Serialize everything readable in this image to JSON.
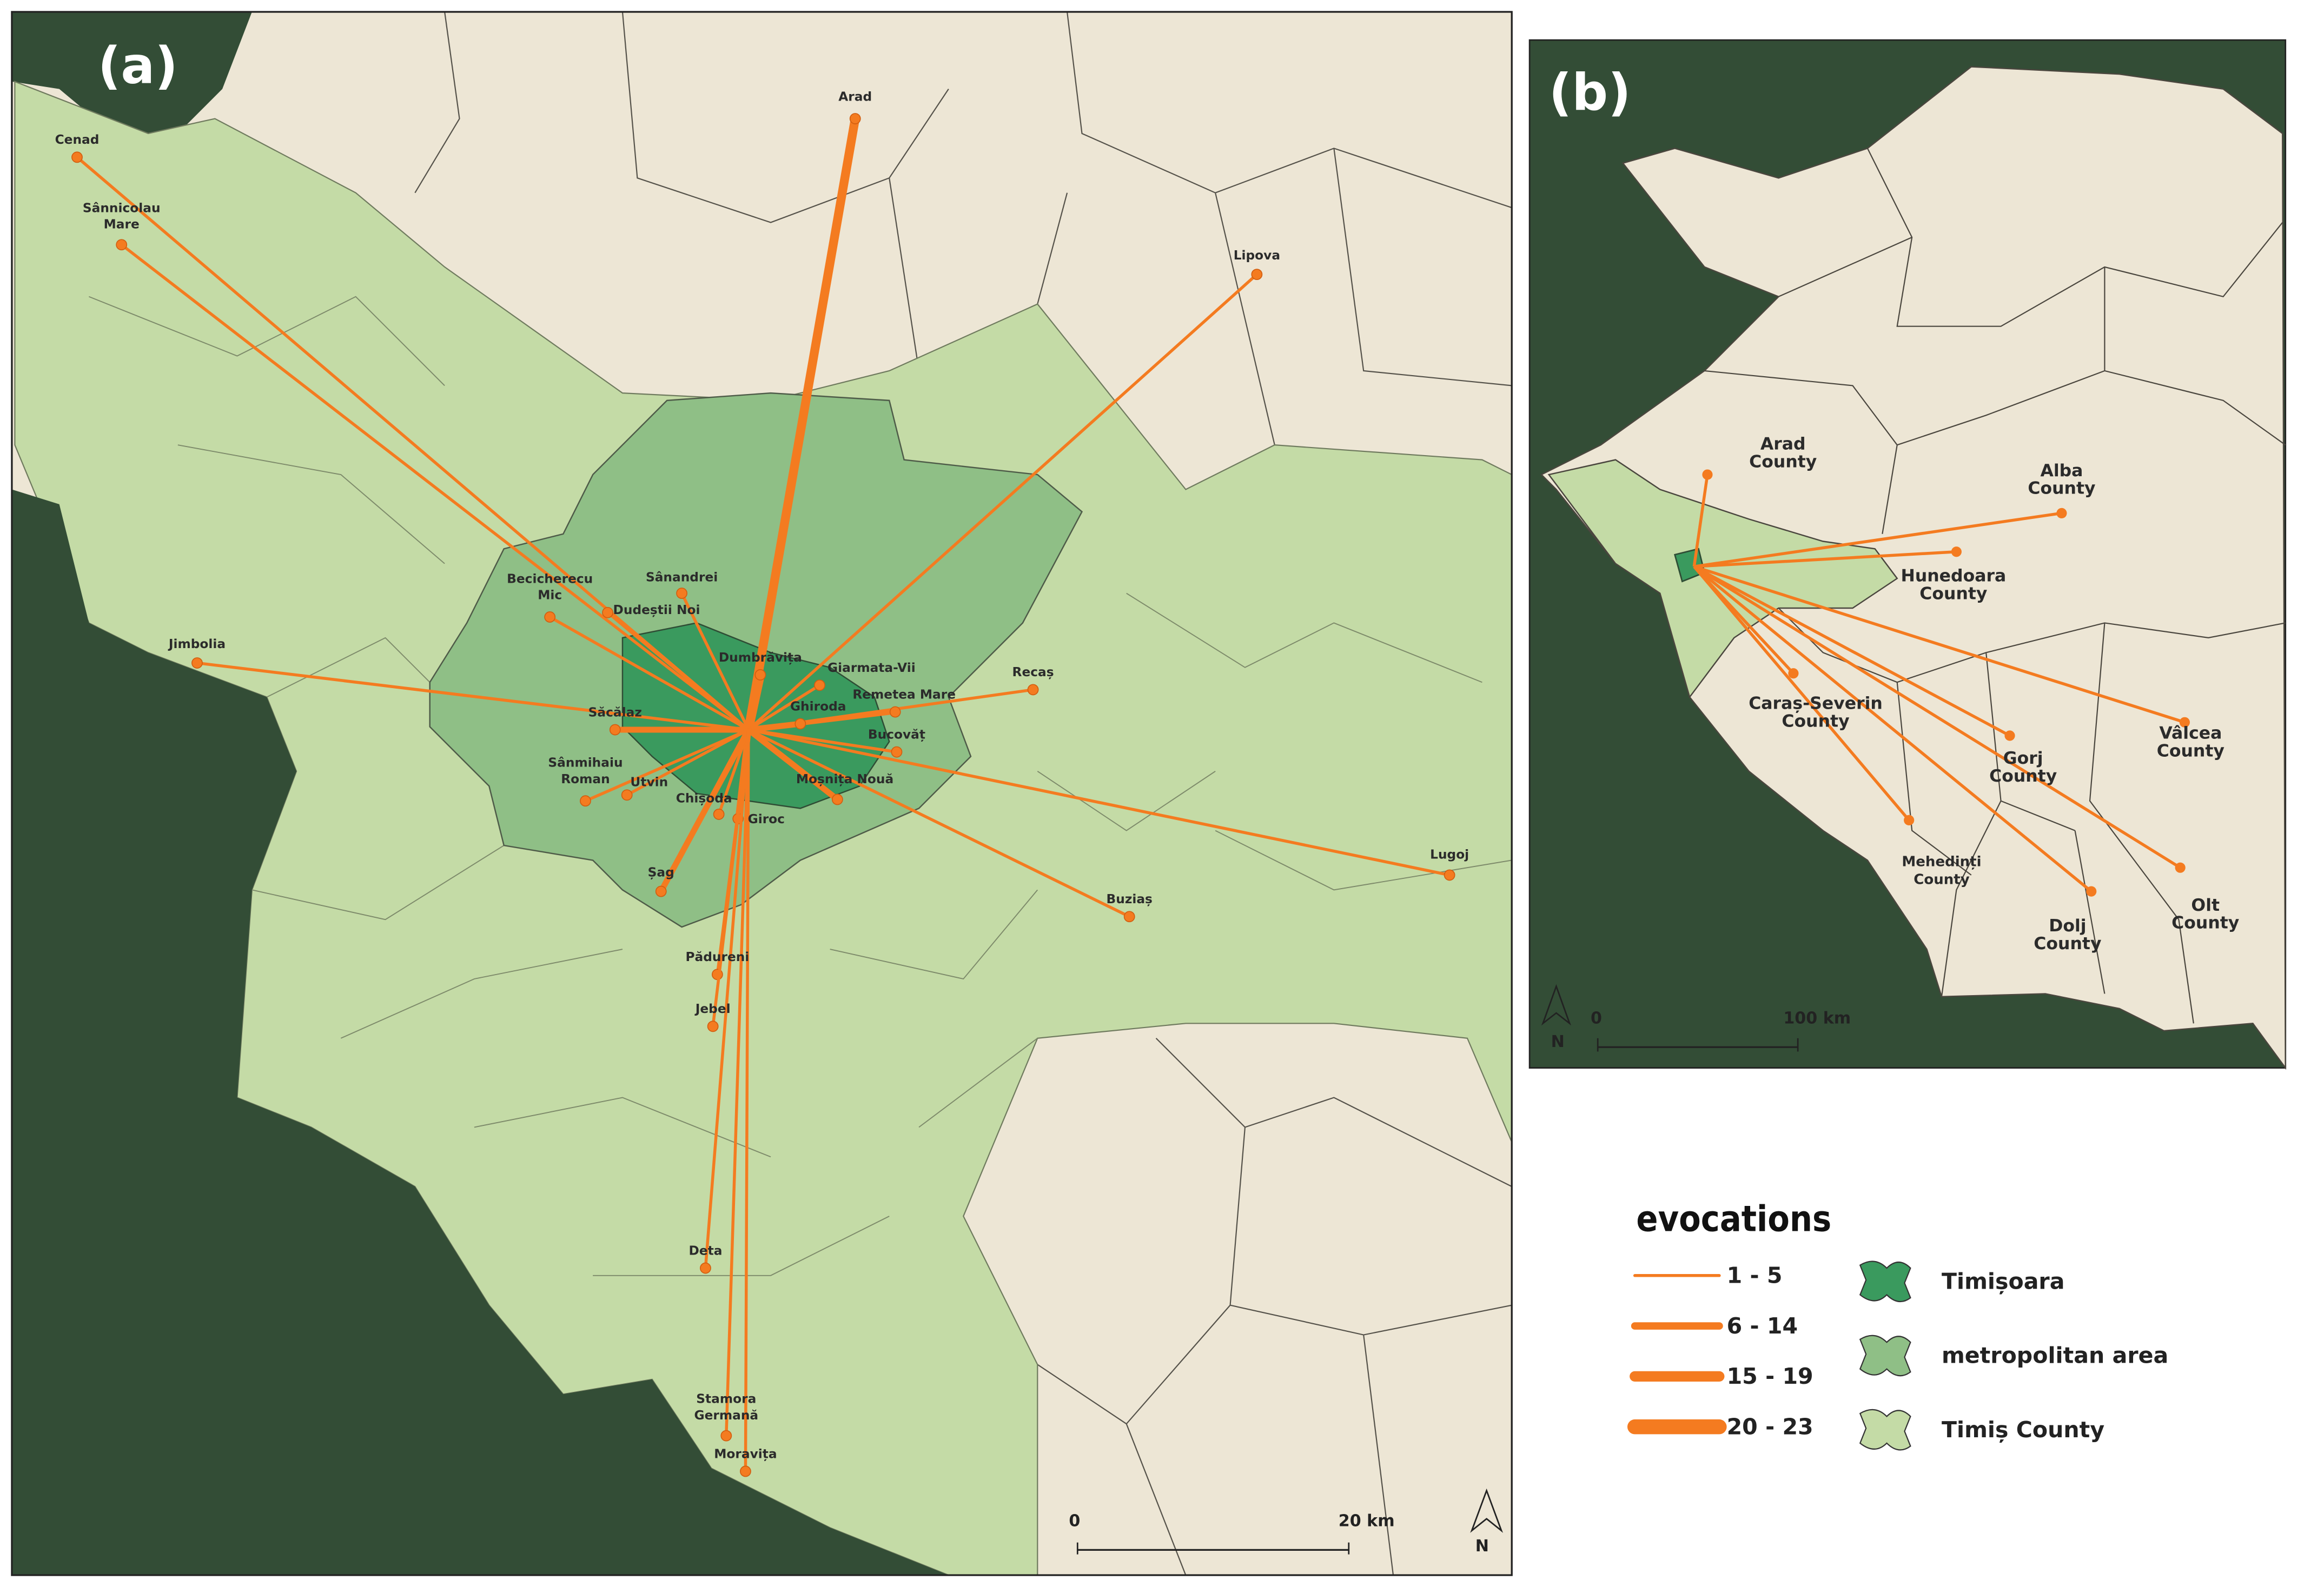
{
  "panel_a": {
    "label": "(a)",
    "places": [
      [
        "Arad"
      ],
      [
        "Cenad"
      ],
      [
        "Sânnicolau",
        "Mare"
      ],
      [
        "Lipova"
      ],
      [
        "Sânandrei"
      ],
      [
        "Becicherecu",
        "Mic"
      ],
      [
        "Dudeștii Noi"
      ],
      [
        "Jimbolia"
      ],
      [
        "Dumbrăvița"
      ],
      [
        "Giarmata-Vii"
      ],
      [
        "Recaș"
      ],
      [
        "Remetea Mare"
      ],
      [
        "Ghiroda"
      ],
      [
        "Săcălaz"
      ],
      [
        "Bucovăț"
      ],
      [
        "Sânmihaiu",
        "Roman"
      ],
      [
        "Utvin"
      ],
      [
        "Moșnița Nouă"
      ],
      [
        "Chișoda"
      ],
      [
        "Giroc"
      ],
      [
        "Lugoj"
      ],
      [
        "Șag"
      ],
      [
        "Buziaș"
      ],
      [
        "Pădureni"
      ],
      [
        "Jebel"
      ],
      [
        "Deta"
      ],
      [
        "Stamora",
        "Germană"
      ],
      [
        "Moravița"
      ]
    ],
    "scale": {
      "zero": "0",
      "distance": "20 km"
    },
    "north": "N"
  },
  "panel_b": {
    "label": "(b)",
    "counties": [
      [
        "Arad",
        "County"
      ],
      [
        "Alba",
        "County"
      ],
      [
        "Hunedoara",
        "County"
      ],
      [
        "Caraș-Severin",
        "County"
      ],
      [
        "Vâlcea",
        "County"
      ],
      [
        "Gorj",
        "County"
      ],
      [
        "Mehedinți",
        "County"
      ],
      [
        "Dolj",
        "County"
      ],
      [
        "Olt",
        "County"
      ]
    ],
    "scale": {
      "zero": "0",
      "distance": "100 km"
    },
    "north": "N"
  },
  "legend": {
    "title": "evocations",
    "classes": [
      "1 - 5",
      "6 - 14",
      "15 - 19",
      "20 - 23"
    ],
    "areas": [
      "Timișoara",
      "metropolitan area",
      "Timiș County"
    ]
  }
}
